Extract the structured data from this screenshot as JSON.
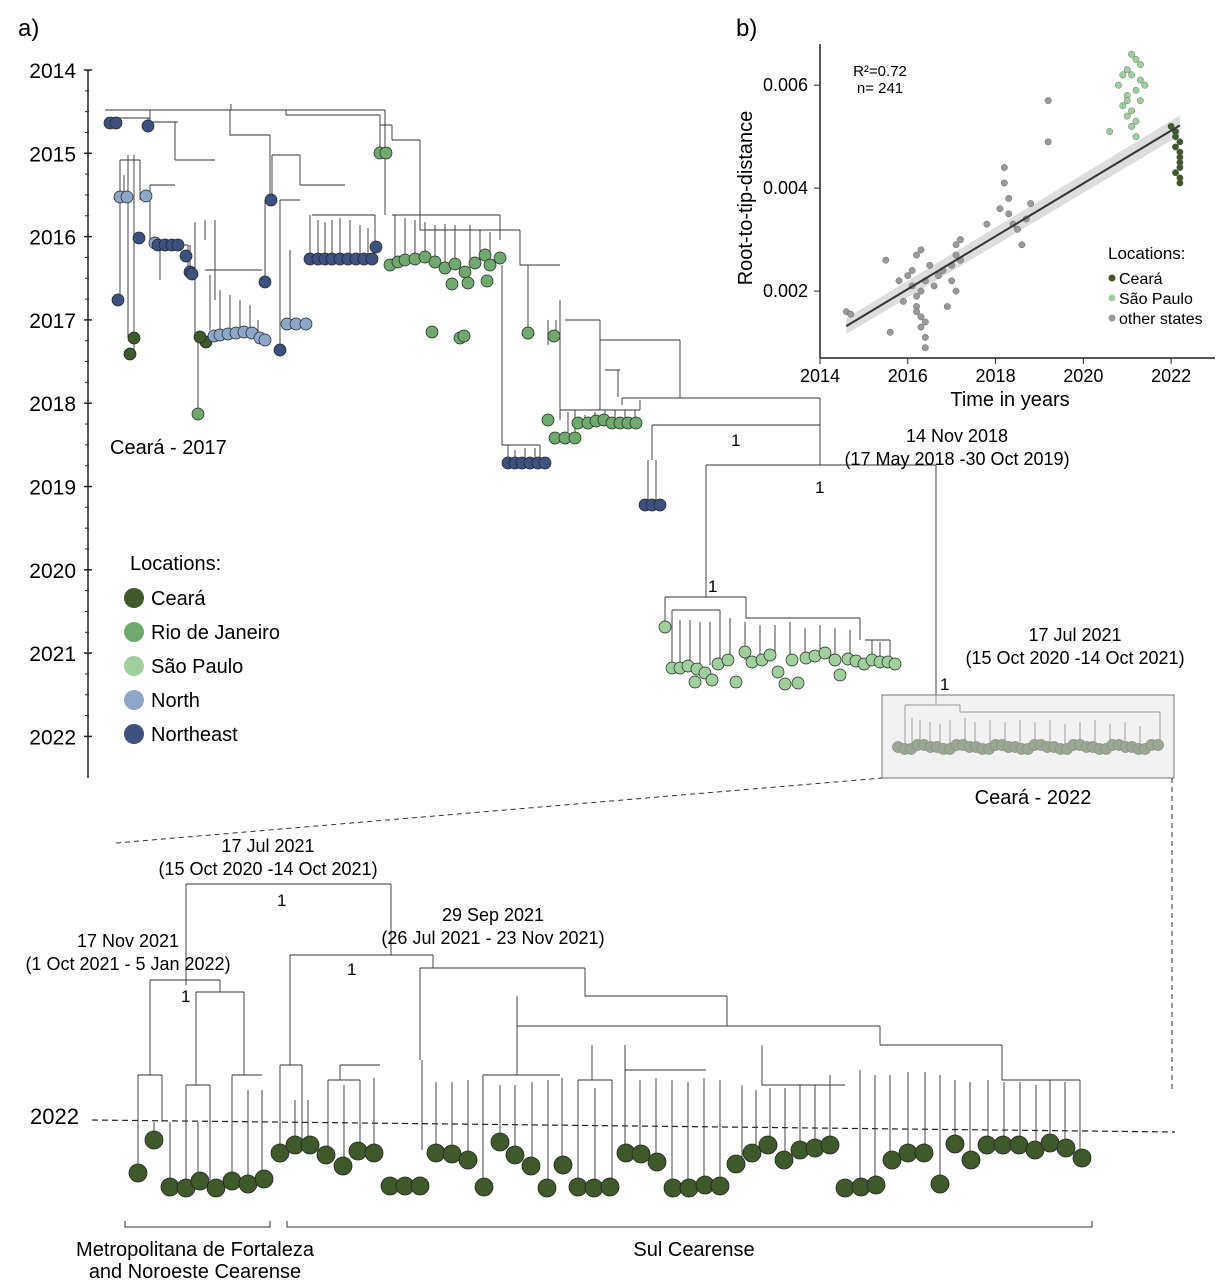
{
  "colors": {
    "ceara": "#3f5a2a",
    "rio": "#6fa96e",
    "saopaulo": "#9fcf9c",
    "north": "#8ea7c8",
    "northeast": "#3d5180",
    "other": "#9a9a9a",
    "stroke": "#222222",
    "box": "#e6e8e6"
  },
  "panel_a": {
    "label": "a)",
    "years": [
      "2014",
      "2015",
      "2016",
      "2017",
      "2018",
      "2019",
      "2020",
      "2021",
      "2022"
    ],
    "legend": {
      "title": "Locations:",
      "items": [
        {
          "name": "Ceará",
          "color_key": "ceara"
        },
        {
          "name": "Rio de Janeiro",
          "color_key": "rio"
        },
        {
          "name": "São Paulo",
          "color_key": "saopaulo"
        },
        {
          "name": "North",
          "color_key": "north"
        },
        {
          "name": "Northeast",
          "color_key": "northeast"
        }
      ]
    },
    "clade_ceara_2017": "Ceará - 2017",
    "clade_ceara_2022": "Ceará - 2022",
    "node_2018": {
      "date": "14 Nov 2018",
      "interval": "(17 May 2018 -30 Oct 2019)"
    },
    "node_2021": {
      "date": "17 Jul 2021",
      "interval": "(15 Oct 2020 -14 Oct 2021)"
    },
    "support": [
      "1",
      "1",
      "1",
      "1"
    ]
  },
  "panel_b": {
    "label": "b)",
    "ylabel": "Root-to-tip-distance",
    "xlabel": "Time in years",
    "r2": "R²=0.72",
    "n": "n= 241",
    "legend_title": "Locations:",
    "legend_items": [
      {
        "name": "Ceará",
        "color_key": "ceara"
      },
      {
        "name": "São Paulo",
        "color_key": "saopaulo"
      },
      {
        "name": "other states",
        "color_key": "other"
      }
    ]
  },
  "chart_data": {
    "type": "scatter",
    "xlabel": "Time in years",
    "ylabel": "Root-to-tip-distance",
    "xlim": [
      2014,
      2023
    ],
    "ylim": [
      0.0007,
      0.0068
    ],
    "xticks": [
      "2014",
      "2016",
      "2018",
      "2020",
      "2022"
    ],
    "yticks": [
      "0.002",
      "0.004",
      "0.006"
    ],
    "fit_line": {
      "x": [
        2014.6,
        2022.2
      ],
      "y": [
        0.00132,
        0.00522
      ]
    },
    "series": [
      {
        "name": "other states",
        "color_key": "other",
        "x": [
          2014.6,
          2014.7,
          2015.5,
          2015.6,
          2015.8,
          2015.9,
          2016.0,
          2016.1,
          2016.1,
          2016.2,
          2016.2,
          2016.3,
          2016.3,
          2016.4,
          2016.4,
          2016.5,
          2016.2,
          2016.3,
          2016.4,
          2016.3,
          2016.2,
          2016.4,
          2016.6,
          2016.7,
          2016.8,
          2017.0,
          2017.1,
          2017.1,
          2017.2,
          2017.2,
          2017.0,
          2017.1,
          2016.9,
          2018.2,
          2018.2,
          2018.3,
          2018.3,
          2018.4,
          2018.5,
          2018.7,
          2018.8,
          2019.2,
          2019.2,
          2018.6,
          2017.8,
          2018.1
        ],
        "y": [
          0.0016,
          0.00155,
          0.0026,
          0.0012,
          0.0022,
          0.0018,
          0.0023,
          0.0024,
          0.0021,
          0.0019,
          0.0017,
          0.0015,
          0.0013,
          0.0011,
          0.0009,
          0.0025,
          0.0027,
          0.0028,
          0.0022,
          0.002,
          0.0016,
          0.0014,
          0.0021,
          0.0023,
          0.0024,
          0.0025,
          0.0027,
          0.0029,
          0.003,
          0.0026,
          0.0022,
          0.002,
          0.0017,
          0.0044,
          0.0041,
          0.0038,
          0.0035,
          0.0033,
          0.0032,
          0.0034,
          0.0037,
          0.0057,
          0.0049,
          0.0029,
          0.0033,
          0.0036
        ]
      },
      {
        "name": "São Paulo",
        "color_key": "saopaulo",
        "x": [
          2020.6,
          2020.8,
          2020.9,
          2021.0,
          2021.0,
          2021.1,
          2021.1,
          2021.2,
          2021.2,
          2021.3,
          2021.3,
          2021.4,
          2021.0,
          2021.1,
          2021.2,
          2021.3,
          2021.1,
          2021.2,
          2020.9,
          2021.0
        ],
        "y": [
          0.0051,
          0.006,
          0.0056,
          0.0063,
          0.0058,
          0.0062,
          0.0055,
          0.0065,
          0.0059,
          0.0061,
          0.0057,
          0.006,
          0.0054,
          0.0052,
          0.0053,
          0.0064,
          0.0066,
          0.005,
          0.0062,
          0.0057
        ]
      },
      {
        "name": "Ceará",
        "color_key": "ceara",
        "x": [
          2022.0,
          2022.1,
          2022.1,
          2022.2,
          2022.2,
          2022.2,
          2022.1,
          2022.2,
          2022.2,
          2022.1,
          2022.2,
          2022.2
        ],
        "y": [
          0.0052,
          0.005,
          0.0048,
          0.0047,
          0.0045,
          0.0044,
          0.0043,
          0.0042,
          0.0046,
          0.0051,
          0.0049,
          0.0041
        ]
      }
    ]
  },
  "panel_c": {
    "year": "2022",
    "node_root": {
      "date": "17 Jul 2021",
      "interval": "(15 Oct 2020 -14 Oct 2021)"
    },
    "node_left": {
      "date": "17 Nov 2021",
      "interval": "(1 Oct 2021 - 5 Jan 2022)"
    },
    "node_right": {
      "date": "29 Sep 2021",
      "interval": "(26 Jul 2021 - 23 Nov 2021)"
    },
    "support": [
      "1",
      "1",
      "1"
    ],
    "region_left_line1": "Metropolitana de Fortaleza",
    "region_left_line2": "and Noroeste Cearense",
    "region_right": "Sul Cearense"
  }
}
